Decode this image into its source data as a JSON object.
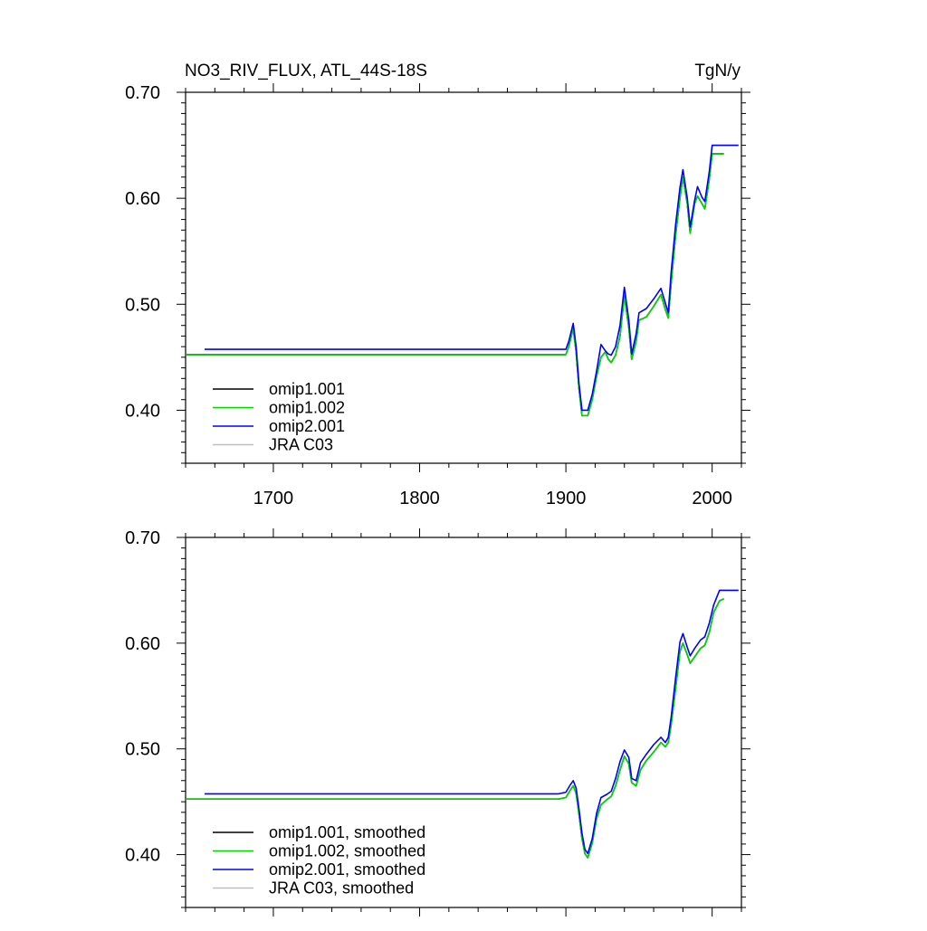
{
  "header": {
    "title": "NO3_RIV_FLUX, ATL_44S-18S",
    "units": "TgN/y"
  },
  "chart_data": [
    {
      "type": "line",
      "title": "NO3_RIV_FLUX, ATL_44S-18S",
      "units": "TgN/y",
      "xlim": [
        1640,
        2020
      ],
      "ylim": [
        0.35,
        0.7
      ],
      "xticks": [
        1700,
        1800,
        1900,
        2000
      ],
      "xtick_labels": [
        "1700",
        "1800",
        "1900",
        "2000"
      ],
      "yticks": [
        0.4,
        0.5,
        0.6,
        0.7
      ],
      "ytick_labels": [
        "0.40",
        "0.50",
        "0.60",
        "0.70"
      ],
      "legend_position": "bottom-left",
      "series": [
        {
          "name": "omip1.001",
          "color": "#000000",
          "x": [
            1640,
            1900,
            1902,
            1905,
            1907,
            1909,
            1911,
            1915,
            1918,
            1921,
            1924,
            1927,
            1929,
            1931,
            1934,
            1937,
            1940,
            1943,
            1945,
            1948,
            1950,
            1955,
            1960,
            1965,
            1968,
            1970,
            1972,
            1975,
            1978,
            1980,
            1983,
            1985,
            1988,
            1990,
            1993,
            1995,
            1998,
            2000,
            2008
          ],
          "y": [
            0.4525,
            0.4525,
            0.46,
            0.477,
            0.455,
            0.42,
            0.395,
            0.395,
            0.41,
            0.432,
            0.45,
            0.455,
            0.448,
            0.445,
            0.452,
            0.47,
            0.508,
            0.478,
            0.448,
            0.465,
            0.485,
            0.488,
            0.498,
            0.509,
            0.495,
            0.487,
            0.52,
            0.565,
            0.6,
            0.62,
            0.595,
            0.567,
            0.595,
            0.602,
            0.595,
            0.59,
            0.618,
            0.642,
            0.642
          ]
        },
        {
          "name": "omip1.002",
          "color": "#00d800",
          "x": [
            1640,
            1900,
            1902,
            1905,
            1907,
            1909,
            1911,
            1915,
            1918,
            1921,
            1924,
            1927,
            1929,
            1931,
            1934,
            1937,
            1940,
            1943,
            1945,
            1948,
            1950,
            1955,
            1960,
            1965,
            1968,
            1970,
            1972,
            1975,
            1978,
            1980,
            1983,
            1985,
            1988,
            1990,
            1993,
            1995,
            1998,
            2000,
            2008
          ],
          "y": [
            0.4525,
            0.4525,
            0.46,
            0.477,
            0.455,
            0.42,
            0.395,
            0.395,
            0.41,
            0.432,
            0.45,
            0.455,
            0.448,
            0.445,
            0.452,
            0.47,
            0.508,
            0.478,
            0.448,
            0.465,
            0.485,
            0.488,
            0.498,
            0.509,
            0.495,
            0.487,
            0.52,
            0.565,
            0.6,
            0.62,
            0.595,
            0.567,
            0.595,
            0.602,
            0.595,
            0.59,
            0.618,
            0.642,
            0.642
          ]
        },
        {
          "name": "omip2.001",
          "color": "#0000ff",
          "x": [
            1653,
            1900,
            1902,
            1905,
            1907,
            1909,
            1911,
            1915,
            1918,
            1921,
            1924,
            1927,
            1929,
            1931,
            1934,
            1937,
            1940,
            1943,
            1945,
            1948,
            1950,
            1955,
            1960,
            1965,
            1968,
            1970,
            1972,
            1975,
            1978,
            1980,
            1983,
            1985,
            1988,
            1990,
            1993,
            1995,
            1998,
            2000,
            2018
          ],
          "y": [
            0.4575,
            0.4575,
            0.465,
            0.482,
            0.46,
            0.425,
            0.4,
            0.4,
            0.415,
            0.437,
            0.462,
            0.456,
            0.453,
            0.452,
            0.46,
            0.48,
            0.516,
            0.485,
            0.453,
            0.472,
            0.492,
            0.496,
            0.505,
            0.515,
            0.501,
            0.492,
            0.53,
            0.575,
            0.61,
            0.627,
            0.6,
            0.573,
            0.598,
            0.611,
            0.601,
            0.597,
            0.625,
            0.65,
            0.65
          ]
        },
        {
          "name": "JRA C03",
          "color": "#bfbfbf",
          "x": [],
          "y": []
        }
      ]
    },
    {
      "type": "line",
      "xlim": [
        1640,
        2020
      ],
      "ylim": [
        0.35,
        0.7
      ],
      "xticks": [
        1700,
        1800,
        1900,
        2000
      ],
      "yticks": [
        0.4,
        0.5,
        0.6,
        0.7
      ],
      "ytick_labels": [
        "0.40",
        "0.50",
        "0.60",
        "0.70"
      ],
      "legend_position": "bottom-left",
      "series": [
        {
          "name": "omip1.001, smoothed",
          "color": "#000000",
          "x": [
            1640,
            1895,
            1900,
            1903,
            1905,
            1907,
            1909,
            1911,
            1913,
            1915,
            1918,
            1921,
            1924,
            1928,
            1931,
            1934,
            1937,
            1940,
            1943,
            1945,
            1948,
            1951,
            1955,
            1960,
            1965,
            1968,
            1970,
            1972,
            1975,
            1978,
            1980,
            1983,
            1985,
            1988,
            1992,
            1995,
            1998,
            2001,
            2005,
            2008
          ],
          "y": [
            0.4525,
            0.4525,
            0.454,
            0.461,
            0.465,
            0.458,
            0.438,
            0.415,
            0.401,
            0.397,
            0.411,
            0.434,
            0.447,
            0.452,
            0.455,
            0.465,
            0.48,
            0.493,
            0.486,
            0.468,
            0.465,
            0.48,
            0.489,
            0.497,
            0.506,
            0.502,
            0.506,
            0.523,
            0.557,
            0.592,
            0.6,
            0.589,
            0.581,
            0.587,
            0.595,
            0.598,
            0.61,
            0.629,
            0.64,
            0.642
          ]
        },
        {
          "name": "omip1.002, smoothed",
          "color": "#00d800",
          "x": [
            1640,
            1895,
            1900,
            1903,
            1905,
            1907,
            1909,
            1911,
            1913,
            1915,
            1918,
            1921,
            1924,
            1928,
            1931,
            1934,
            1937,
            1940,
            1943,
            1945,
            1948,
            1951,
            1955,
            1960,
            1965,
            1968,
            1970,
            1972,
            1975,
            1978,
            1980,
            1983,
            1985,
            1988,
            1992,
            1995,
            1998,
            2001,
            2005,
            2008
          ],
          "y": [
            0.4525,
            0.4525,
            0.454,
            0.461,
            0.465,
            0.458,
            0.438,
            0.415,
            0.401,
            0.397,
            0.411,
            0.434,
            0.447,
            0.452,
            0.455,
            0.465,
            0.48,
            0.493,
            0.486,
            0.468,
            0.465,
            0.48,
            0.489,
            0.497,
            0.506,
            0.502,
            0.506,
            0.523,
            0.557,
            0.592,
            0.6,
            0.589,
            0.581,
            0.587,
            0.595,
            0.598,
            0.61,
            0.629,
            0.64,
            0.642
          ]
        },
        {
          "name": "omip2.001, smoothed",
          "color": "#0000ff",
          "x": [
            1653,
            1895,
            1900,
            1903,
            1905,
            1907,
            1909,
            1911,
            1913,
            1915,
            1918,
            1921,
            1924,
            1928,
            1931,
            1934,
            1937,
            1940,
            1943,
            1945,
            1948,
            1951,
            1955,
            1960,
            1965,
            1968,
            1970,
            1972,
            1975,
            1978,
            1980,
            1983,
            1985,
            1988,
            1992,
            1995,
            1998,
            2001,
            2005,
            2018
          ],
          "y": [
            0.4575,
            0.4575,
            0.459,
            0.466,
            0.47,
            0.463,
            0.443,
            0.42,
            0.405,
            0.401,
            0.415,
            0.439,
            0.454,
            0.457,
            0.46,
            0.472,
            0.488,
            0.499,
            0.492,
            0.472,
            0.47,
            0.487,
            0.495,
            0.504,
            0.511,
            0.506,
            0.511,
            0.53,
            0.567,
            0.601,
            0.609,
            0.596,
            0.588,
            0.595,
            0.603,
            0.606,
            0.619,
            0.636,
            0.65,
            0.65
          ]
        },
        {
          "name": "JRA C03, smoothed",
          "color": "#bfbfbf",
          "x": [],
          "y": []
        }
      ]
    }
  ]
}
